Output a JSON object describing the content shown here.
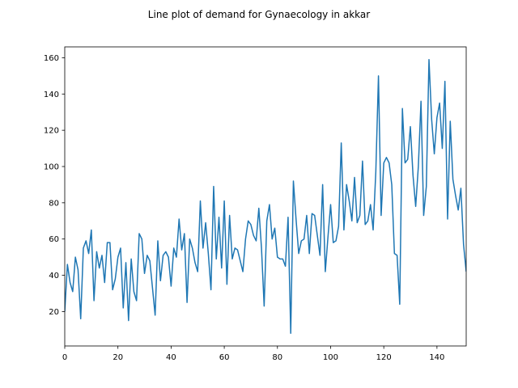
{
  "chart_data": {
    "type": "line",
    "title": "Line plot of demand for Gynaecology in akkar",
    "xlabel": "",
    "ylabel": "",
    "xlim": [
      0,
      151
    ],
    "ylim": [
      1,
      166
    ],
    "xticks": [
      0,
      20,
      40,
      60,
      80,
      100,
      120,
      140
    ],
    "yticks": [
      20,
      40,
      60,
      80,
      100,
      120,
      140,
      160
    ],
    "grid": false,
    "line_color": "#1f77b4",
    "series": [
      {
        "x": [
          0,
          1,
          2,
          3,
          4,
          5,
          6,
          7,
          8,
          9,
          10,
          11,
          12,
          13,
          14,
          15,
          16,
          17,
          18,
          19,
          20,
          21,
          22,
          23,
          24,
          25,
          26,
          27,
          28,
          29,
          30,
          31,
          32,
          33,
          34,
          35,
          36,
          37,
          38,
          39,
          40,
          41,
          42,
          43,
          44,
          45,
          46,
          47,
          48,
          49,
          50,
          51,
          52,
          53,
          54,
          55,
          56,
          57,
          58,
          59,
          60,
          61,
          62,
          63,
          64,
          65,
          66,
          67,
          68,
          69,
          70,
          71,
          72,
          73,
          74,
          75,
          76,
          77,
          78,
          79,
          80,
          81,
          82,
          83,
          84,
          85,
          86,
          87,
          88,
          89,
          90,
          91,
          92,
          93,
          94,
          95,
          96,
          97,
          98,
          99,
          100,
          101,
          102,
          103,
          104,
          105,
          106,
          107,
          108,
          109,
          110,
          111,
          112,
          113,
          114,
          115,
          116,
          117,
          118,
          119,
          120,
          121,
          122,
          123,
          124,
          125,
          126,
          127,
          128,
          129,
          130,
          131,
          132,
          133,
          134,
          135,
          136,
          137,
          138,
          139,
          140,
          141,
          142,
          143,
          144,
          145,
          146,
          147,
          148,
          149,
          150,
          151
        ],
        "values": [
          20,
          46,
          36,
          31,
          50,
          43,
          16,
          55,
          59,
          52,
          65,
          26,
          53,
          44,
          51,
          36,
          58,
          58,
          32,
          38,
          50,
          55,
          22,
          47,
          15,
          49,
          31,
          26,
          63,
          60,
          41,
          51,
          48,
          33,
          18,
          59,
          37,
          51,
          53,
          50,
          34,
          55,
          50,
          71,
          54,
          63,
          25,
          60,
          55,
          47,
          42,
          81,
          55,
          69,
          52,
          32,
          89,
          49,
          72,
          44,
          81,
          35,
          73,
          49,
          55,
          54,
          48,
          42,
          60,
          70,
          68,
          62,
          59,
          77,
          55,
          23,
          70,
          79,
          60,
          66,
          50,
          49,
          49,
          45,
          72,
          8,
          92,
          71,
          52,
          59,
          60,
          73,
          52,
          74,
          73,
          62,
          51,
          90,
          42,
          61,
          79,
          58,
          59,
          67,
          113,
          65,
          90,
          81,
          70,
          94,
          69,
          73,
          103,
          68,
          70,
          79,
          65,
          97,
          150,
          73,
          102,
          105,
          102,
          90,
          52,
          51,
          24,
          132,
          102,
          104,
          122,
          95,
          78,
          100,
          136,
          73,
          89,
          159,
          126,
          107,
          127,
          135,
          110,
          147,
          71,
          125,
          93,
          84,
          76,
          88,
          57,
          42
        ]
      }
    ]
  }
}
